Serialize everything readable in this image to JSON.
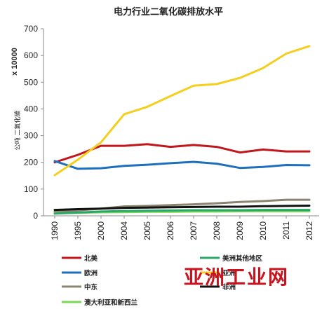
{
  "chart_data": {
    "type": "line",
    "title": "电力行业二氧化碳排放水平",
    "ylabel": "公吨 二氧化碳",
    "multiplier": "x 10000",
    "ylim": [
      0,
      700
    ],
    "yticks": [
      0,
      100,
      200,
      300,
      400,
      500,
      600,
      700
    ],
    "categories": [
      "1990",
      "1995",
      "2000",
      "2004",
      "2005",
      "2006",
      "2007",
      "2008",
      "2009",
      "2010",
      "2011",
      "2012"
    ],
    "legend_placement": "bottom",
    "grid": false,
    "series": [
      {
        "name": "北美",
        "color": "#c0161c",
        "values": [
          200,
          228,
          262,
          262,
          268,
          258,
          265,
          258,
          237,
          248,
          241,
          241
        ]
      },
      {
        "name": "欧洲",
        "color": "#1f6fbf",
        "values": [
          205,
          176,
          178,
          187,
          191,
          197,
          202,
          195,
          179,
          183,
          190,
          189
        ]
      },
      {
        "name": "中东",
        "color": "#8b8470",
        "values": [
          15,
          20,
          27,
          35,
          37,
          40,
          43,
          47,
          52,
          55,
          60,
          60
        ]
      },
      {
        "name": "澳大利亚和新西兰",
        "color": "#7bd957",
        "values": [
          10,
          11,
          13,
          14,
          15,
          15,
          16,
          16,
          17,
          17,
          17,
          17
        ]
      },
      {
        "name": "美洲其他地区",
        "color": "#2aa86a",
        "values": [
          8,
          12,
          16,
          18,
          19,
          20,
          21,
          21,
          21,
          22,
          22,
          22
        ]
      },
      {
        "name": "亚洲",
        "color": "#f5cf1e",
        "values": [
          152,
          210,
          275,
          380,
          408,
          448,
          487,
          493,
          516,
          553,
          607,
          635
        ]
      },
      {
        "name": "非洲",
        "color": "#111111",
        "values": [
          22,
          25,
          27,
          30,
          31,
          32,
          33,
          34,
          34,
          36,
          37,
          38
        ]
      }
    ]
  },
  "watermark": "亚洲工业网"
}
